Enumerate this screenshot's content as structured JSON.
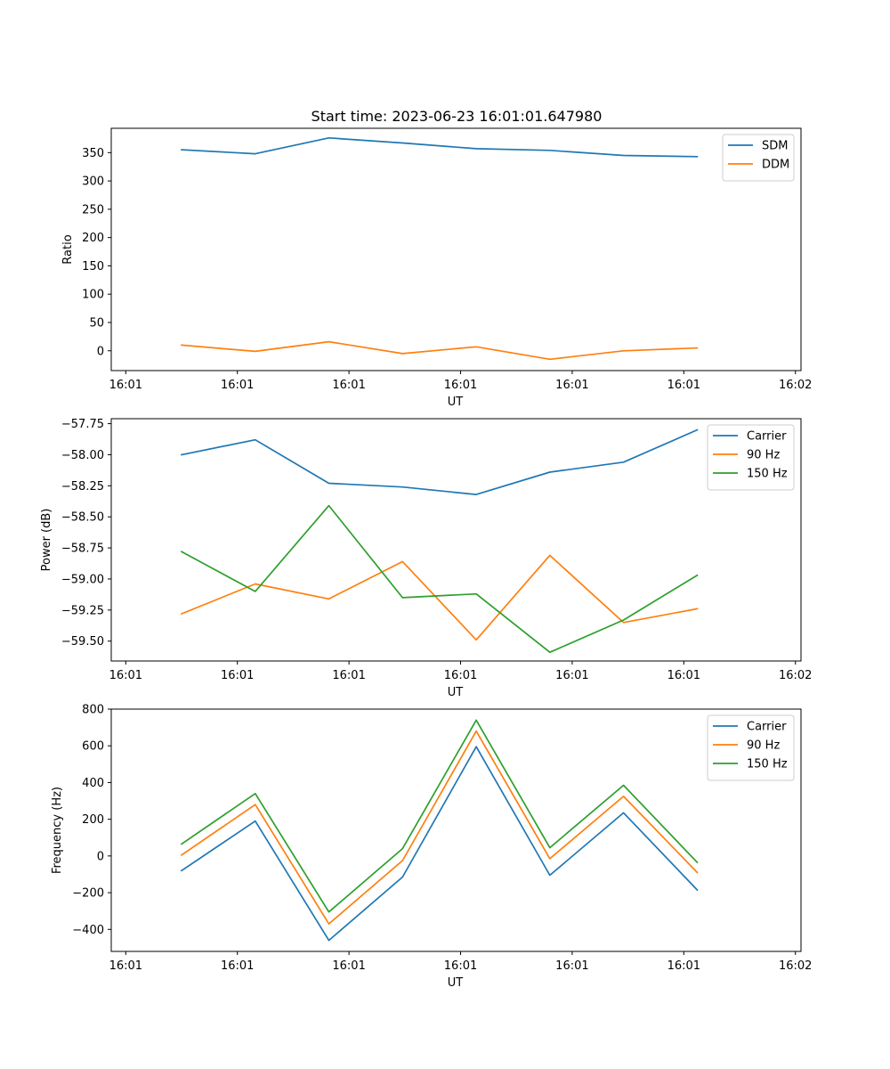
{
  "title": "Start time: 2023-06-23 16:01:01.647980",
  "colors": {
    "blue": "#1f77b4",
    "orange": "#ff7f0e",
    "green": "#2ca02c"
  },
  "chart_data": [
    {
      "type": "line",
      "ylabel": "Ratio",
      "xlabel": "UT",
      "x_ticks": [
        "16:01",
        "16:01",
        "16:01",
        "16:01",
        "16:01",
        "16:01",
        "16:02"
      ],
      "x": [
        0.5,
        1.16,
        1.82,
        2.48,
        3.14,
        3.8,
        4.46,
        5.12
      ],
      "xlim": [
        -0.13,
        6.05
      ],
      "ylim": [
        -35,
        393
      ],
      "y_ticks": [
        0,
        50,
        100,
        150,
        200,
        250,
        300,
        350
      ],
      "legend": "top-right",
      "series": [
        {
          "name": "SDM",
          "color": "#1f77b4",
          "values": [
            355,
            348,
            376,
            367,
            357,
            354,
            345,
            343
          ]
        },
        {
          "name": "DDM",
          "color": "#ff7f0e",
          "values": [
            10,
            -1,
            16,
            -5,
            7,
            -15,
            0,
            5
          ]
        }
      ]
    },
    {
      "type": "line",
      "ylabel": "Power (dB)",
      "xlabel": "UT",
      "x_ticks": [
        "16:01",
        "16:01",
        "16:01",
        "16:01",
        "16:01",
        "16:01",
        "16:02"
      ],
      "x": [
        0.5,
        1.16,
        1.82,
        2.48,
        3.14,
        3.8,
        4.46,
        5.12
      ],
      "xlim": [
        -0.13,
        6.05
      ],
      "ylim": [
        -59.66,
        -57.71
      ],
      "y_ticks": [
        -59.5,
        -59.25,
        -59.0,
        -58.75,
        -58.5,
        -58.25,
        -58.0,
        -57.75
      ],
      "y_tick_labels": [
        "−59.50",
        "−59.25",
        "−59.00",
        "−58.75",
        "−58.50",
        "−58.25",
        "−58.00",
        "−57.75"
      ],
      "legend": "top-right",
      "series": [
        {
          "name": "Carrier",
          "color": "#1f77b4",
          "values": [
            -58.0,
            -57.88,
            -58.23,
            -58.26,
            -58.32,
            -58.14,
            -58.06,
            -57.8
          ]
        },
        {
          "name": "90 Hz",
          "color": "#ff7f0e",
          "values": [
            -59.28,
            -59.04,
            -59.16,
            -58.86,
            -59.49,
            -58.81,
            -59.35,
            -59.24
          ]
        },
        {
          "name": "150 Hz",
          "color": "#2ca02c",
          "values": [
            -58.78,
            -59.1,
            -58.41,
            -59.15,
            -59.12,
            -59.59,
            -59.33,
            -58.97
          ]
        }
      ]
    },
    {
      "type": "line",
      "ylabel": "Frequency (Hz)",
      "xlabel": "UT",
      "x_ticks": [
        "16:01",
        "16:01",
        "16:01",
        "16:01",
        "16:01",
        "16:01",
        "16:02"
      ],
      "x": [
        0.5,
        1.16,
        1.82,
        2.48,
        3.14,
        3.8,
        4.46,
        5.12
      ],
      "xlim": [
        -0.13,
        6.05
      ],
      "ylim": [
        -520,
        800
      ],
      "y_ticks": [
        -400,
        -200,
        0,
        200,
        400,
        600,
        800
      ],
      "y_tick_labels": [
        "−400",
        "−200",
        "0",
        "200",
        "400",
        "600",
        "800"
      ],
      "legend": "top-right",
      "series": [
        {
          "name": "Carrier",
          "color": "#1f77b4",
          "values": [
            -80,
            190,
            -460,
            -115,
            595,
            -105,
            235,
            -185
          ]
        },
        {
          "name": "90 Hz",
          "color": "#ff7f0e",
          "values": [
            5,
            280,
            -370,
            -25,
            680,
            -15,
            325,
            -90
          ]
        },
        {
          "name": "150 Hz",
          "color": "#2ca02c",
          "values": [
            65,
            340,
            -305,
            40,
            740,
            45,
            385,
            -35
          ]
        }
      ]
    }
  ]
}
